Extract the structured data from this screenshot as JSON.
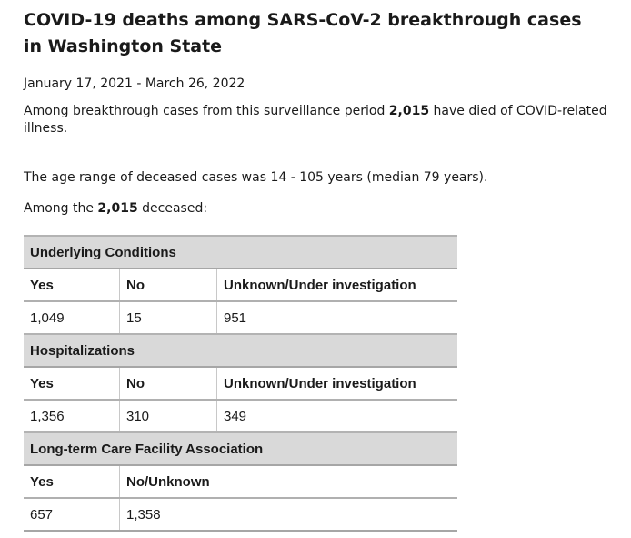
{
  "title": "COVID-19 deaths among SARS-CoV-2 breakthrough cases in Washington State",
  "date_range": "January 17, 2021 - March 26, 2022",
  "summary": {
    "prefix": "Among breakthrough cases from this surveillance period ",
    "count": "2,015",
    "suffix": " have died of COVID-related illness."
  },
  "age_range_text": "The age range of deceased cases was 14 - 105 years (median 79 years).",
  "among_deceased": {
    "prefix": "Among the ",
    "count": "2,015",
    "suffix": " deceased:"
  },
  "table": {
    "underlying_conditions": {
      "title": "Underlying Conditions",
      "headers": [
        "Yes",
        "No",
        "Unknown/Under investigation"
      ],
      "values": [
        "1,049",
        "15",
        "951"
      ]
    },
    "hospitalizations": {
      "title": "Hospitalizations",
      "headers": [
        "Yes",
        "No",
        "Unknown/Under investigation"
      ],
      "values": [
        "1,356",
        "310",
        "349"
      ]
    },
    "long_term_care": {
      "title": "Long-term Care Facility Association",
      "headers": [
        "Yes",
        "No/Unknown"
      ],
      "values": [
        "657",
        "1,358"
      ]
    }
  }
}
